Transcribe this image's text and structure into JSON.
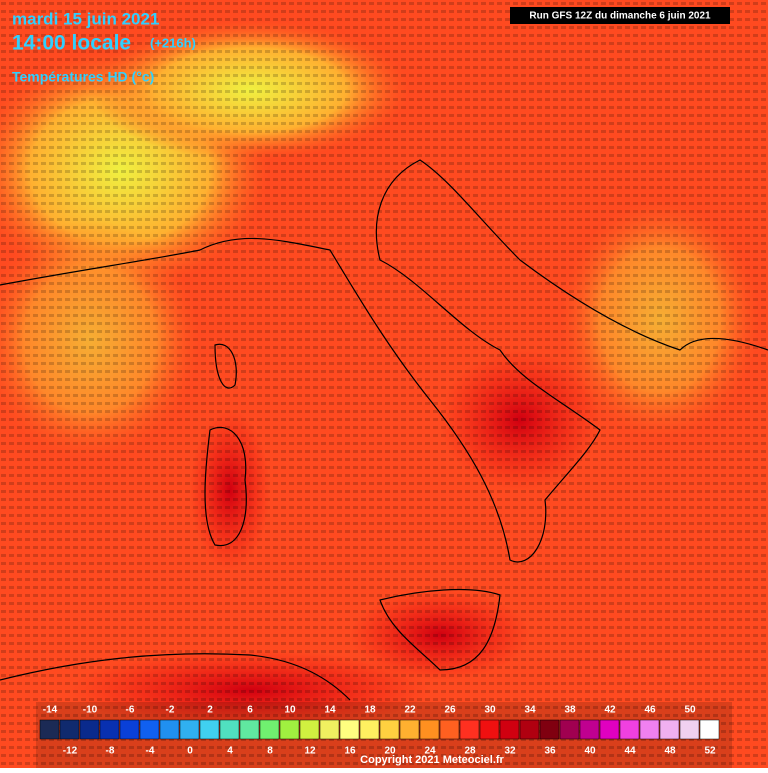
{
  "header": {
    "date": "mardi 15 juin 2021",
    "time": "14:00 locale",
    "lead": "(+216h)",
    "run": "Run GFS 12Z du dimanche 6 juin 2021",
    "variable": "Températures HD (°c)"
  },
  "legend": {
    "values": [
      -14,
      -12,
      -10,
      -8,
      -6,
      -4,
      -2,
      0,
      2,
      4,
      6,
      8,
      10,
      12,
      14,
      16,
      18,
      20,
      22,
      24,
      26,
      28,
      30,
      32,
      34,
      36,
      38,
      40,
      42,
      44,
      46,
      48,
      50,
      52
    ],
    "colors": [
      "#1b2a55",
      "#102a6e",
      "#0a2a8c",
      "#0830b0",
      "#0a40d8",
      "#1060f0",
      "#2090f0",
      "#30b0f0",
      "#40d0f0",
      "#50e0c0",
      "#60e8a0",
      "#70f070",
      "#a0f040",
      "#d0f040",
      "#f0f060",
      "#ffff80",
      "#fff060",
      "#ffd040",
      "#ffb030",
      "#ff9020",
      "#ff6020",
      "#ff3020",
      "#f01010",
      "#d00010",
      "#b00010",
      "#800010",
      "#a00050",
      "#c00090",
      "#e000c0",
      "#f040e0",
      "#f080f0",
      "#f0b0f0",
      "#f0d0f0",
      "#ffffff"
    ]
  },
  "footer": {
    "copyright": "Copyright 2021 Meteociel.fr"
  }
}
